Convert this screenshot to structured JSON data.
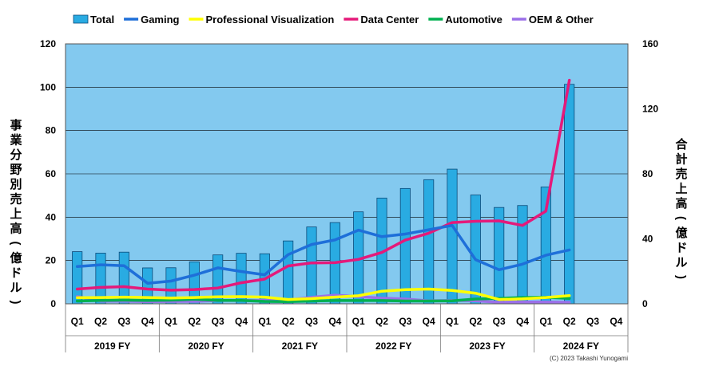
{
  "chart_data": {
    "type": "bar+line",
    "title": "",
    "ylabel_left": "事業分野別売上高(億ドル)",
    "ylabel_right": "合計売上高(億ドル)",
    "ylim_left": [
      0,
      120
    ],
    "ylim_right": [
      0,
      160
    ],
    "yticks_left": [
      "0",
      "20",
      "40",
      "60",
      "80",
      "100",
      "120"
    ],
    "yticks_right": [
      "0",
      "40",
      "80",
      "120",
      "160"
    ],
    "quarters": [
      "Q1",
      "Q2",
      "Q3",
      "Q4",
      "Q1",
      "Q2",
      "Q3",
      "Q4",
      "Q1",
      "Q2",
      "Q3",
      "Q4",
      "Q1",
      "Q2",
      "Q3",
      "Q4",
      "Q1",
      "Q2",
      "Q3",
      "Q4",
      "Q1",
      "Q2",
      "Q3",
      "Q4"
    ],
    "fiscal_years": [
      "2019 FY",
      "2020 FY",
      "2021 FY",
      "2022 FY",
      "2023 FY",
      "2024 FY"
    ],
    "legend": [
      "Total",
      "Gaming",
      "Professional Visualization",
      "Data Center",
      "Automotive",
      "OEM & Other"
    ],
    "series": [
      {
        "name": "Total",
        "kind": "bar",
        "axis": "right",
        "color": "#29abe2",
        "values": [
          32.1,
          31.2,
          31.8,
          22.1,
          22.2,
          25.8,
          30.1,
          31.1,
          30.8,
          38.7,
          47.3,
          50.0,
          56.6,
          65.1,
          71.0,
          76.4,
          82.9,
          67.0,
          59.3,
          60.5,
          71.9,
          135.1,
          null,
          null
        ]
      },
      {
        "name": "Gaming",
        "kind": "line",
        "axis": "left",
        "color": "#1e6fd9",
        "values": [
          17.2,
          18.0,
          17.6,
          9.5,
          10.5,
          13.2,
          16.6,
          14.9,
          13.4,
          22.7,
          27.4,
          29.5,
          34.0,
          31.0,
          32.2,
          34.2,
          36.2,
          20.4,
          15.7,
          18.3,
          22.4,
          24.9,
          null,
          null
        ]
      },
      {
        "name": "Professional Visualization",
        "kind": "line",
        "axis": "left",
        "color": "#ffff00",
        "values": [
          2.8,
          2.9,
          3.1,
          2.9,
          2.7,
          2.9,
          3.2,
          3.3,
          3.1,
          2.0,
          2.4,
          3.1,
          3.7,
          5.8,
          6.5,
          6.8,
          6.2,
          4.9,
          2.0,
          2.3,
          2.9,
          3.8,
          null,
          null
        ]
      },
      {
        "name": "Data Center",
        "kind": "line",
        "axis": "left",
        "color": "#e5197a",
        "values": [
          6.8,
          7.6,
          7.9,
          6.8,
          6.3,
          6.6,
          7.3,
          9.7,
          11.4,
          17.5,
          18.9,
          19.0,
          20.5,
          23.7,
          29.4,
          32.6,
          37.5,
          38.1,
          38.3,
          36.2,
          42.8,
          103.2,
          null,
          null
        ]
      },
      {
        "name": "Automotive",
        "kind": "line",
        "axis": "left",
        "color": "#00b050",
        "values": [
          1.3,
          1.6,
          1.7,
          1.6,
          1.7,
          2.1,
          1.6,
          1.6,
          1.1,
          1.0,
          1.3,
          1.5,
          1.5,
          1.5,
          1.3,
          1.3,
          1.4,
          2.2,
          2.5,
          2.9,
          3.0,
          2.5,
          null,
          null
        ]
      },
      {
        "name": "OEM & Other",
        "kind": "line",
        "axis": "left",
        "color": "#9b6fe8",
        "values": [
          3.4,
          1.2,
          1.2,
          1.0,
          1.1,
          1.1,
          1.5,
          1.5,
          1.6,
          1.8,
          3.0,
          4.0,
          3.3,
          2.6,
          2.2,
          1.4,
          1.6,
          1.4,
          0.7,
          0.8,
          0.8,
          0.7,
          null,
          null
        ]
      }
    ],
    "copyright": "(C) 2023 Takashi Yunogami"
  }
}
